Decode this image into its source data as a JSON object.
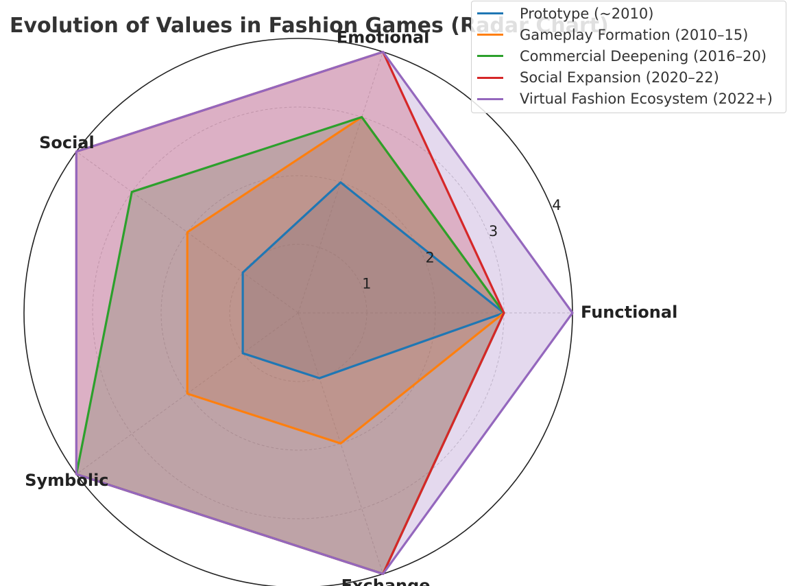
{
  "chart_data": {
    "type": "radar",
    "title": "Evolution of Values in Fashion Games (Radar Chart)",
    "axes": [
      "Functional",
      "Emotional",
      "Social",
      "Symbolic",
      "Exchange"
    ],
    "rlim": [
      0,
      4
    ],
    "rticks": [
      "1",
      "2",
      "3",
      "4"
    ],
    "grid": true,
    "legend_position": "top-right",
    "series": [
      {
        "name": "Prototype (~2010)",
        "color": "#1f77b4",
        "values": [
          3,
          2,
          1,
          1,
          1
        ]
      },
      {
        "name": "Gameplay Formation (2010–15)",
        "color": "#ff7f0e",
        "values": [
          3,
          3,
          2,
          2,
          2
        ]
      },
      {
        "name": "Commercial Deepening (2016–20)",
        "color": "#2ca02c",
        "values": [
          3,
          3,
          3,
          4,
          4
        ]
      },
      {
        "name": "Social Expansion (2020–22)",
        "color": "#d62728",
        "values": [
          3,
          4,
          4,
          4,
          4
        ]
      },
      {
        "name": "Virtual Fashion Ecosystem (2022+)",
        "color": "#9467bd",
        "values": [
          4,
          4,
          4,
          4,
          4
        ]
      }
    ]
  }
}
